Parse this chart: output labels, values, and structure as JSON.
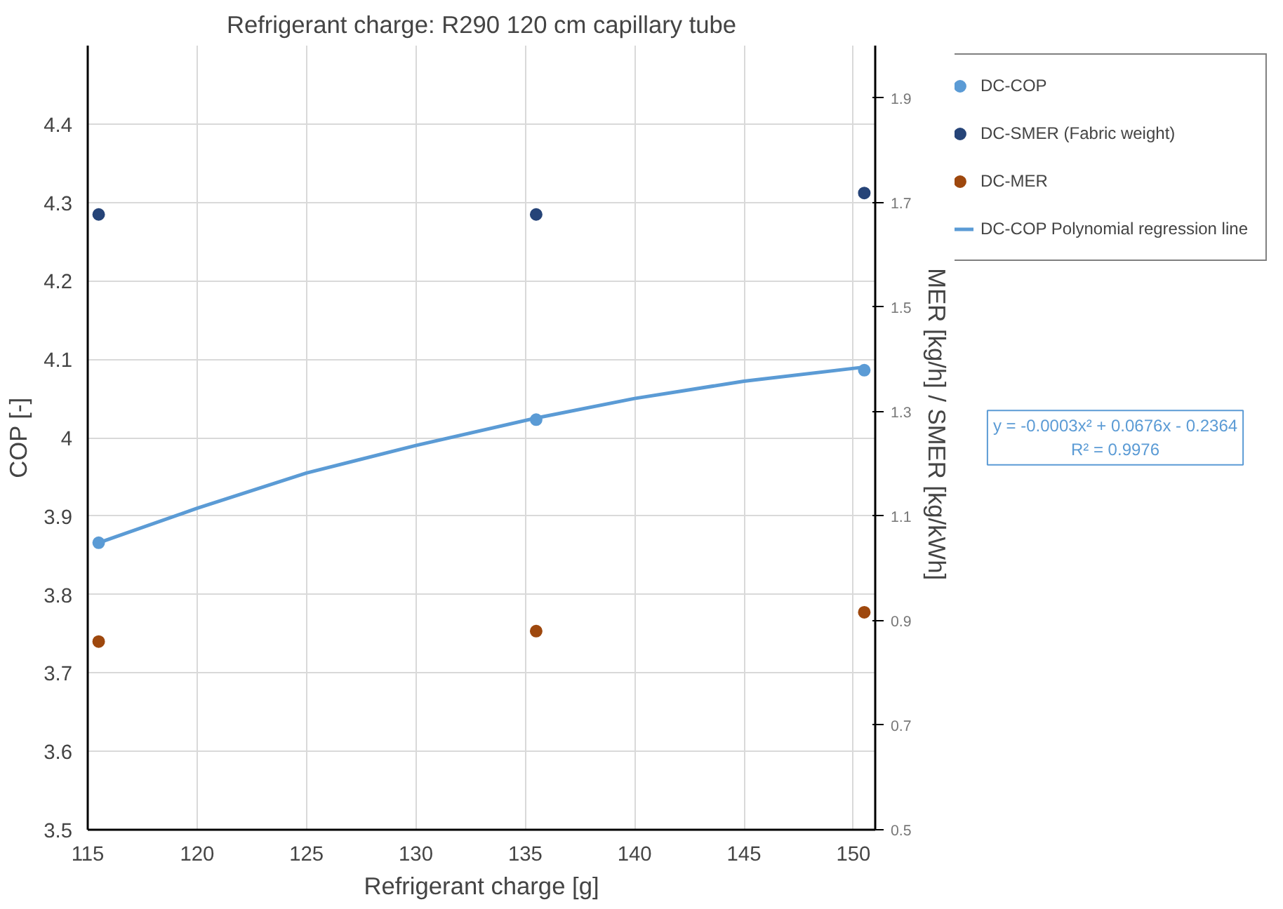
{
  "chart_data": {
    "type": "scatter",
    "title": "Refrigerant charge: R290 120 cm capillary tube",
    "xlabel": "Refrigerant charge [g]",
    "ylabel": "COP [-]",
    "y2label": "MER [kg/h]   /   SMER [kg/kWh]",
    "x": [
      115.5,
      135.5,
      150.5
    ],
    "series": [
      {
        "name": "DC-COP",
        "color": "#5b9bd5",
        "values": [
          3.866,
          4.023,
          4.086
        ]
      },
      {
        "name": "DC-SMER (Fabric weight)",
        "color": "#264478",
        "values": [
          1.677,
          1.677,
          1.718
        ],
        "axis": "y2"
      },
      {
        "name": "DC-MER",
        "color": "#9e480e",
        "values": [
          0.86,
          0.88,
          0.916
        ],
        "axis": "y2"
      },
      {
        "name": "DC-COP Polynomial regression line",
        "type": "line",
        "marker": "none",
        "color": "#5b9bd5",
        "x": [
          115.5,
          120,
          125,
          130,
          135.5,
          140,
          145,
          150.5
        ],
        "values": [
          3.866,
          3.91,
          3.955,
          3.99,
          4.025,
          4.05,
          4.072,
          4.09
        ]
      }
    ],
    "annotations": [
      "y = -0.0003x² + 0.0676x - 0.2364\nR² = 0.9976"
    ],
    "xlim": [
      115,
      151
    ],
    "xticks": [
      115,
      120,
      125,
      130,
      135,
      140,
      145,
      150
    ],
    "ylim": [
      3.5,
      4.5
    ],
    "yticks": [
      3.5,
      3.6,
      3.7,
      3.8,
      3.9,
      {
        "value": 4.0,
        "label": "4"
      },
      4.1,
      4.2,
      4.3,
      4.4
    ],
    "y2lim": [
      0.5,
      2.0
    ],
    "y2ticks": [
      0.5,
      0.7,
      0.9,
      1.1,
      1.3,
      1.5,
      1.7,
      1.9
    ],
    "grid": true,
    "legend": "top right",
    "marker": "circle"
  }
}
